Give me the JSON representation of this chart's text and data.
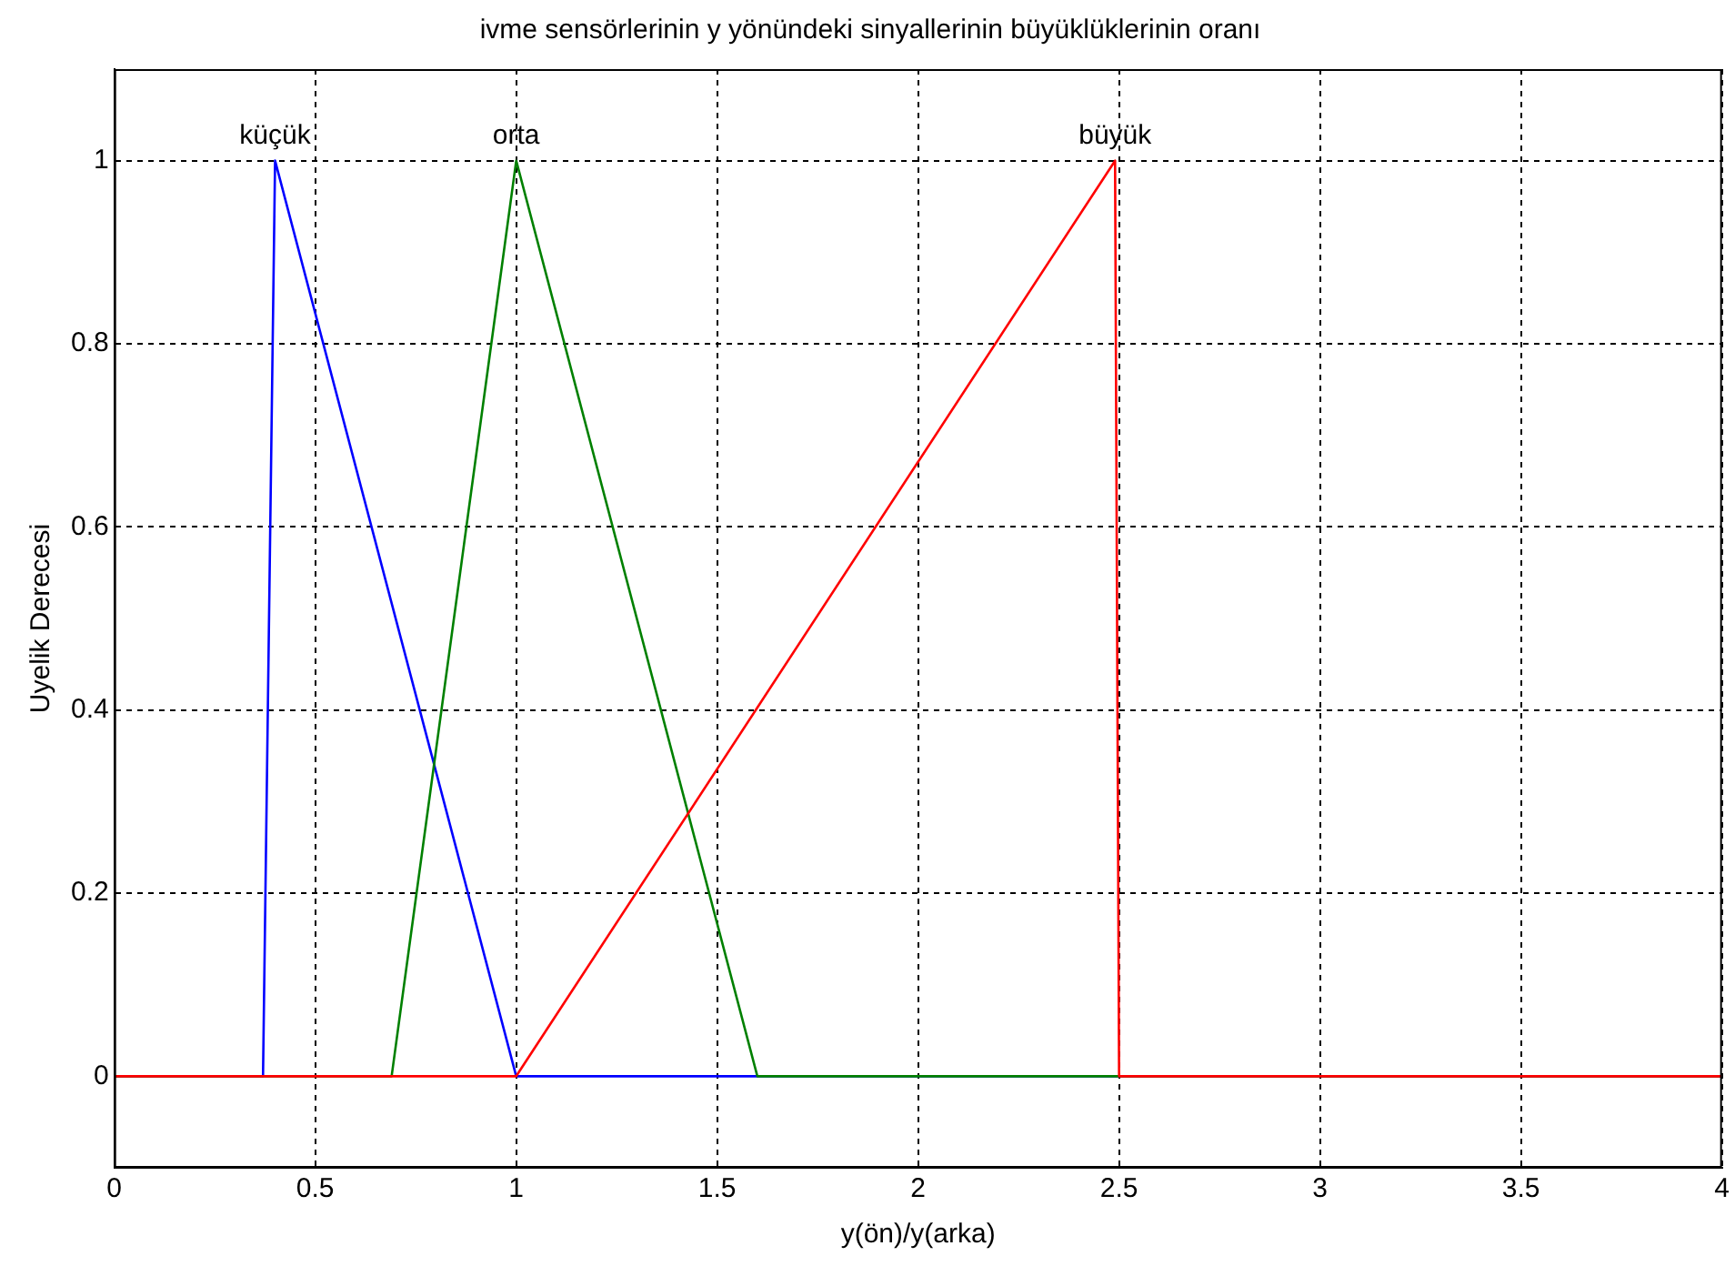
{
  "chart_data": {
    "type": "line",
    "title": "ivme sensörlerinin y yönündeki sinyallerinin büyüklüklerinin oranı",
    "xlabel": "y(ön)/y(arka)",
    "ylabel": "Uyelik Derecesi",
    "series": [
      {
        "name": "küçük",
        "color": "#0000ff",
        "x": [
          0,
          0.37,
          0.4,
          1,
          4
        ],
        "values": [
          0,
          0,
          1,
          0,
          0
        ]
      },
      {
        "name": "orta",
        "color": "#008000",
        "x": [
          0,
          0.69,
          1,
          1.6,
          4
        ],
        "values": [
          0,
          0,
          1,
          0,
          0
        ]
      },
      {
        "name": "büyük",
        "color": "#ff0000",
        "x": [
          0,
          1,
          2.49,
          2.5,
          4
        ],
        "values": [
          0,
          0,
          1,
          0,
          0
        ]
      }
    ],
    "xlim": [
      0,
      4
    ],
    "xticks": [
      0,
      0.5,
      1,
      1.5,
      2,
      2.5,
      3,
      3.5,
      4
    ],
    "ylim": [
      -0.1,
      1.1
    ],
    "yticks": [
      0,
      0.2,
      0.4,
      0.6,
      0.8,
      1
    ],
    "grid": true,
    "line_style": "solid",
    "marker": "none",
    "legend": false
  }
}
